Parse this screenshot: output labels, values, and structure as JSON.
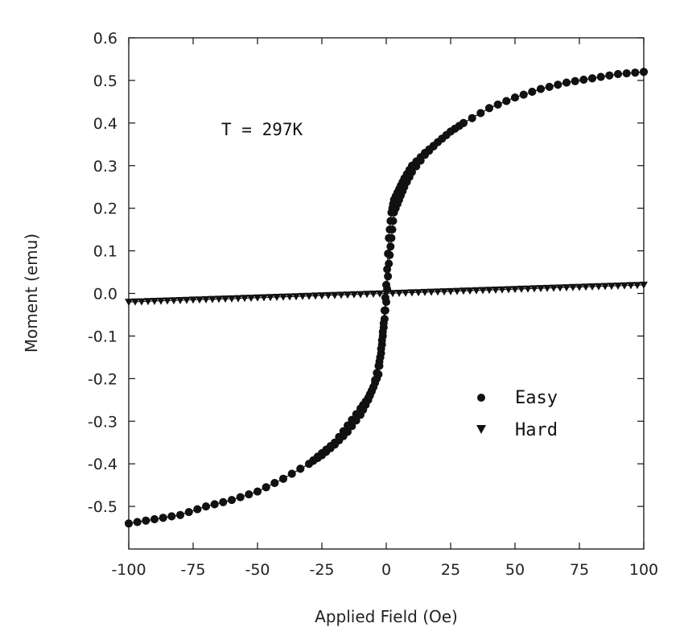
{
  "chart_data": {
    "type": "scatter",
    "xlabel": "Applied Field (Oe)",
    "ylabel": "Moment (emu)",
    "xlim": [
      -100,
      100
    ],
    "ylim": [
      -0.6,
      0.6
    ],
    "xticks": [
      -100,
      -75,
      -50,
      -25,
      0,
      25,
      50,
      75,
      100
    ],
    "yticks": [
      -0.5,
      -0.4,
      -0.3,
      -0.2,
      -0.1,
      0.0,
      0.1,
      0.2,
      0.3,
      0.4,
      0.5,
      0.6
    ],
    "ytick_labels": [
      "-0.5",
      "-0.4",
      "-0.3",
      "-0.2",
      "-0.1",
      "0.0",
      "0.1",
      "0.2",
      "0.3",
      "0.4",
      "0.5",
      "0.6"
    ],
    "xtick_labels": [
      "-100",
      "-75",
      "-50",
      "-25",
      "0",
      "25",
      "50",
      "75",
      "100"
    ],
    "annotation": "T = 297K",
    "legend_position": "bottom-right",
    "grid": false,
    "series": [
      {
        "name": "Easy",
        "marker": "circle",
        "color": "#111111",
        "branches": [
          {
            "x": [
              -100,
              -90,
              -80,
              -70,
              -60,
              -50,
              -40,
              -30,
              -25,
              -20,
              -15,
              -10,
              -7,
              -5,
              -3,
              -2,
              -1,
              0,
              1,
              2,
              3,
              5,
              7,
              10,
              15,
              20,
              25,
              30,
              40,
              50,
              60,
              70,
              80,
              90,
              100
            ],
            "y": [
              -0.54,
              -0.53,
              -0.52,
              -0.5,
              -0.485,
              -0.465,
              -0.435,
              -0.4,
              -0.375,
              -0.35,
              -0.31,
              -0.27,
              -0.245,
              -0.22,
              -0.17,
              -0.14,
              -0.08,
              -0.02,
              0.07,
              0.13,
              0.19,
              0.22,
              0.25,
              0.285,
              0.325,
              0.355,
              0.38,
              0.4,
              0.435,
              0.46,
              0.48,
              0.495,
              0.505,
              0.515,
              0.52
            ]
          },
          {
            "x": [
              100,
              90,
              80,
              70,
              60,
              50,
              40,
              30,
              25,
              20,
              15,
              10,
              7,
              5,
              3,
              2,
              1,
              0,
              -1,
              -2,
              -3,
              -5,
              -7,
              -10,
              -15,
              -20,
              -25,
              -30,
              -40,
              -50,
              -60,
              -70,
              -80,
              -90,
              -100
            ],
            "y": [
              0.52,
              0.515,
              0.505,
              0.495,
              0.48,
              0.46,
              0.435,
              0.4,
              0.38,
              0.355,
              0.33,
              0.3,
              0.27,
              0.245,
              0.22,
              0.19,
              0.13,
              0.02,
              -0.07,
              -0.13,
              -0.19,
              -0.22,
              -0.25,
              -0.285,
              -0.325,
              -0.355,
              -0.38,
              -0.4,
              -0.435,
              -0.465,
              -0.485,
              -0.5,
              -0.52,
              -0.53,
              -0.54
            ]
          }
        ]
      },
      {
        "name": "Hard",
        "marker": "triangle-down",
        "color": "#111111",
        "branches": [
          {
            "x": [
              -100,
              -90,
              -80,
              -70,
              -60,
              -50,
              -40,
              -30,
              -20,
              -10,
              0,
              10,
              20,
              30,
              40,
              50,
              60,
              70,
              80,
              90,
              100
            ],
            "y": [
              -0.02,
              -0.018,
              -0.016,
              -0.014,
              -0.012,
              -0.01,
              -0.008,
              -0.006,
              -0.004,
              -0.002,
              0.0,
              0.002,
              0.004,
              0.006,
              0.008,
              0.01,
              0.012,
              0.014,
              0.016,
              0.018,
              0.02
            ]
          }
        ]
      }
    ]
  }
}
